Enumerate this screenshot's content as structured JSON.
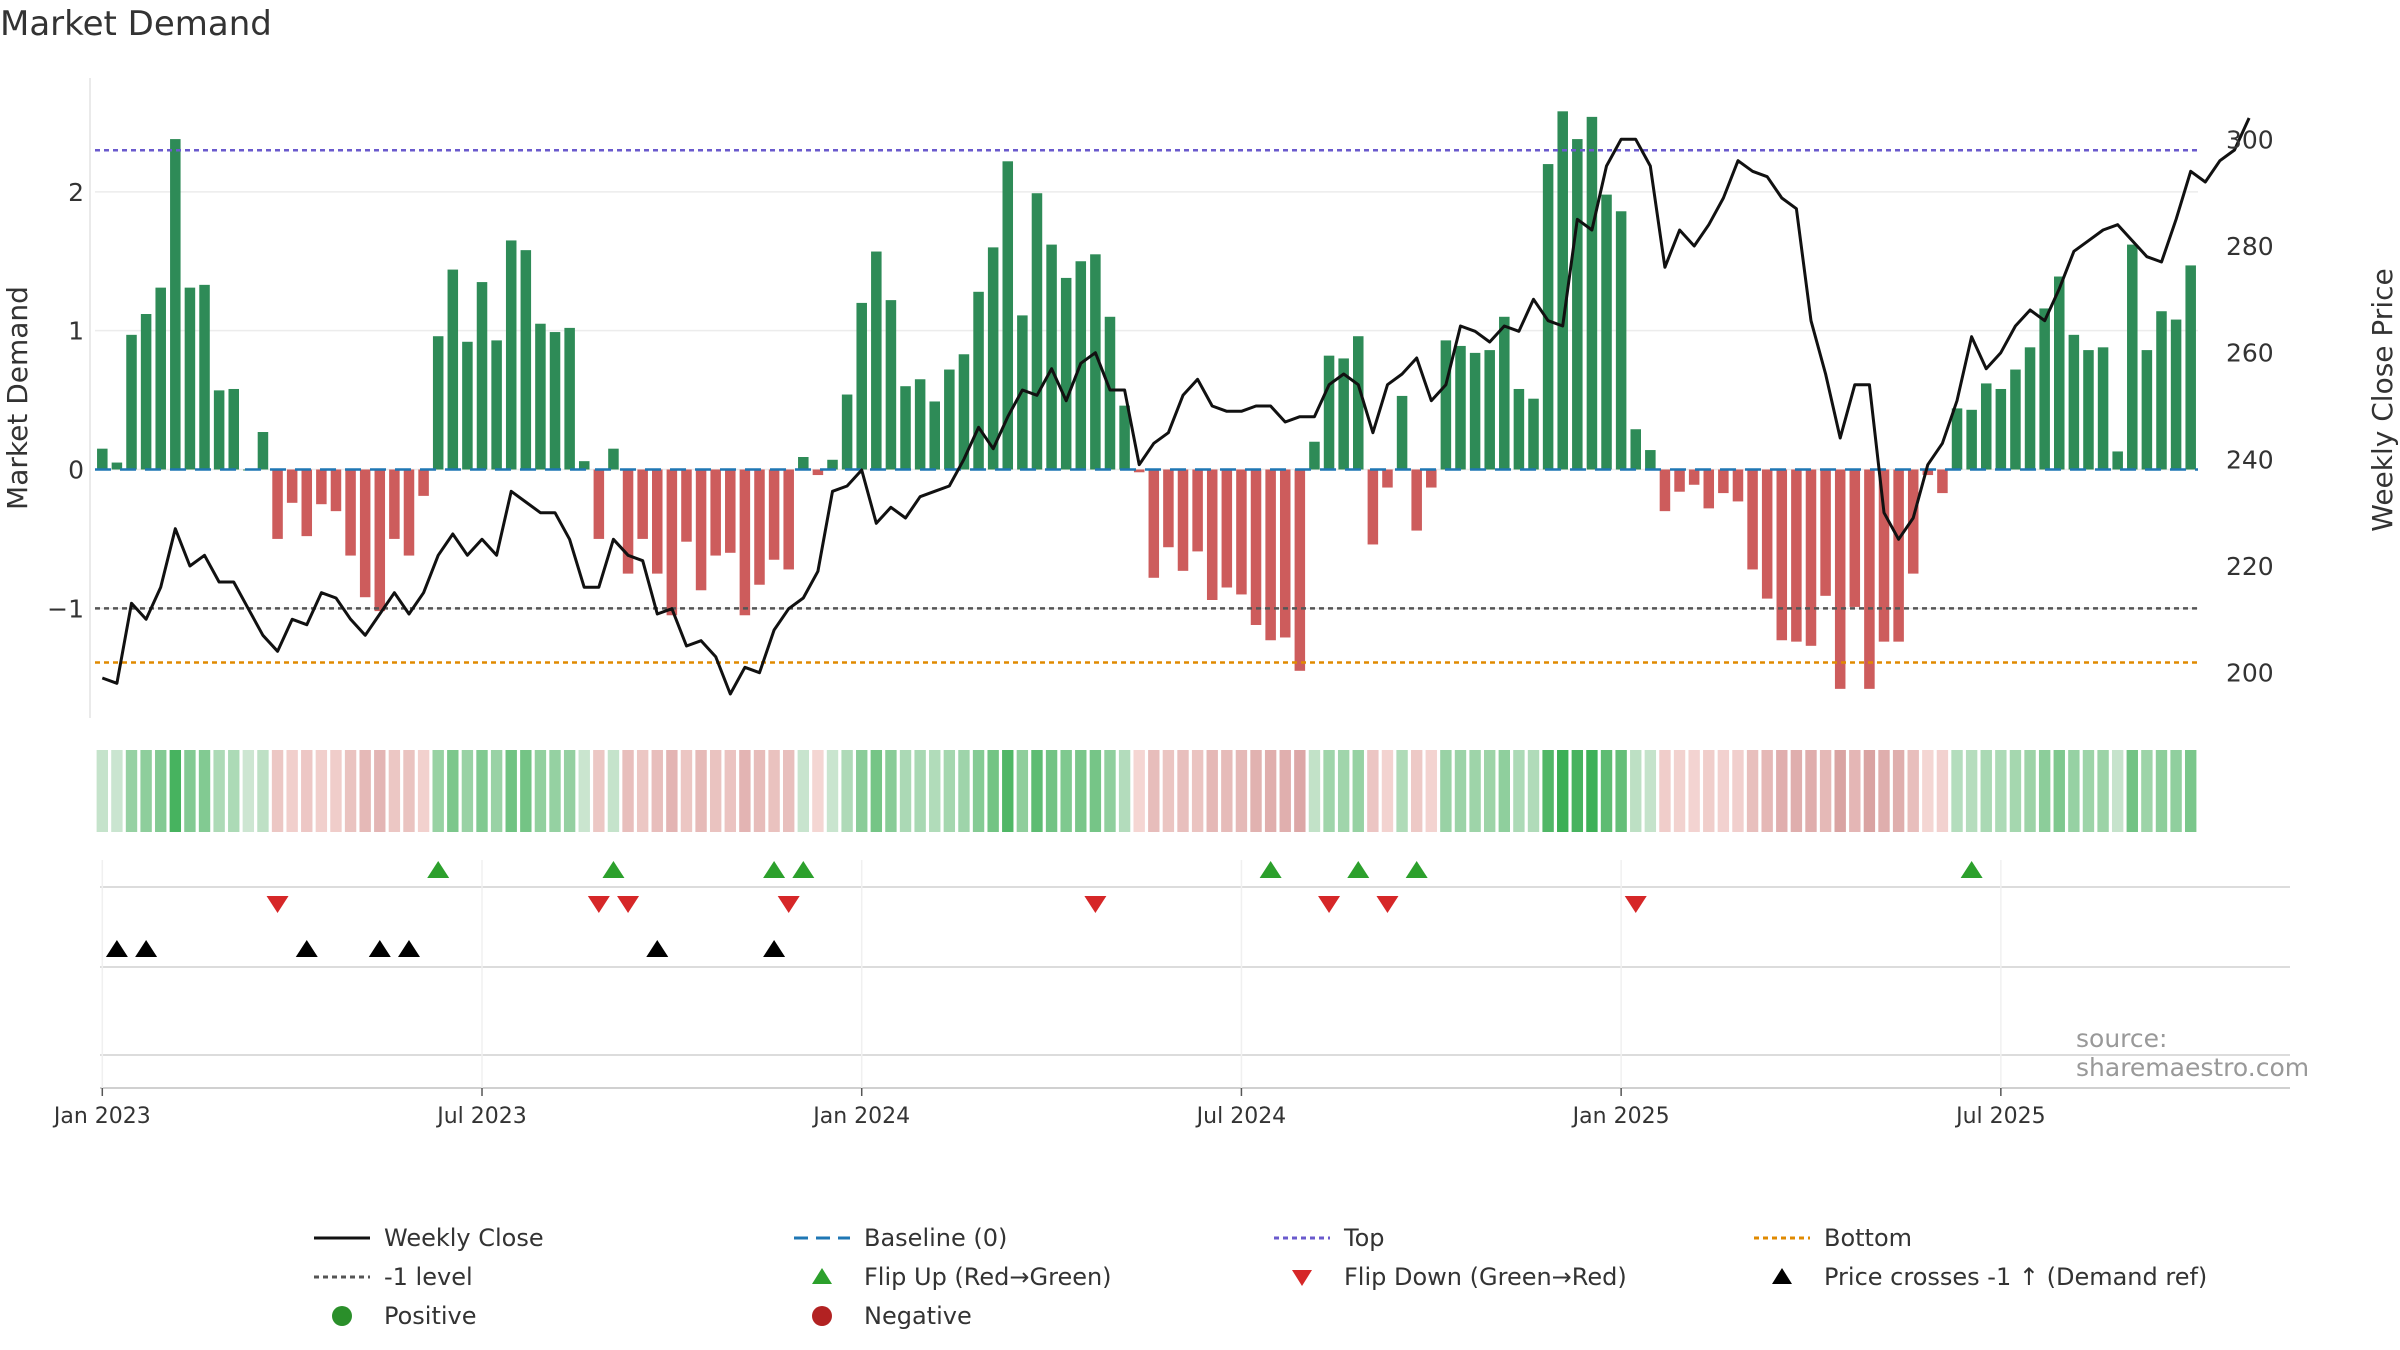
{
  "title": "Market Demand",
  "source": "source: sharemaestro.com",
  "colors": {
    "positive_bar": "#2e8b57",
    "negative_bar": "#cd5c5c",
    "price_line": "#111111",
    "baseline": "#1f77b4",
    "top": "#6a5acd",
    "minus_one": "#555555",
    "bottom": "#e08a00",
    "flip_up": "#2ca02c",
    "flip_down": "#d62728",
    "cross": "#000000"
  },
  "chart_data": {
    "type": "bar",
    "title": "Market Demand",
    "ylabel_left": "Market Demand",
    "ylabel_right": "Weekly Close Price",
    "left_yticks": [
      "2",
      "1",
      "0",
      "−1"
    ],
    "left_ytick_values": [
      2,
      1,
      0,
      -1
    ],
    "right_yticks": [
      "300",
      "280",
      "260",
      "240",
      "220",
      "200"
    ],
    "right_ytick_values": [
      300,
      280,
      260,
      240,
      220,
      200
    ],
    "ylim_left": [
      -1.79,
      2.82
    ],
    "ylim_right": [
      191.5,
      311.5
    ],
    "xticks": [
      "Jan 2023",
      "Jul 2023",
      "Jan 2024",
      "Jul 2024",
      "Jan 2025",
      "Jul 2025"
    ],
    "reference_lines": {
      "baseline": 0,
      "top": 2.3,
      "minus_one": -1,
      "bottom": -1.39
    },
    "demand": [
      0.15,
      0.05,
      0.97,
      1.12,
      1.31,
      2.38,
      1.31,
      1.33,
      0.57,
      0.58,
      0.0,
      0.27,
      -0.5,
      -0.24,
      -0.48,
      -0.25,
      -0.3,
      -0.62,
      -0.92,
      -1.02,
      -0.5,
      -0.62,
      -0.19,
      0.96,
      1.44,
      0.92,
      1.35,
      0.93,
      1.65,
      1.58,
      1.05,
      0.99,
      1.02,
      0.06,
      -0.5,
      0.15,
      -0.75,
      -0.5,
      -0.75,
      -1.05,
      -0.52,
      -0.87,
      -0.62,
      -0.6,
      -1.05,
      -0.83,
      -0.65,
      -0.72,
      0.09,
      -0.04,
      0.07,
      0.54,
      1.2,
      1.57,
      1.22,
      0.6,
      0.65,
      0.49,
      0.72,
      0.83,
      1.28,
      1.6,
      2.22,
      1.11,
      1.99,
      1.62,
      1.38,
      1.5,
      1.55,
      1.1,
      0.46,
      -0.02,
      -0.78,
      -0.56,
      -0.73,
      -0.59,
      -0.94,
      -0.85,
      -0.9,
      -1.12,
      -1.23,
      -1.21,
      -1.45,
      0.2,
      0.82,
      0.8,
      0.96,
      -0.54,
      -0.13,
      0.53,
      -0.44,
      -0.13,
      0.93,
      0.89,
      0.84,
      0.86,
      1.1,
      0.58,
      0.51,
      2.2,
      2.58,
      2.38,
      2.54,
      1.98,
      1.86,
      0.29,
      0.14,
      -0.3,
      -0.16,
      -0.11,
      -0.28,
      -0.17,
      -0.23,
      -0.72,
      -0.93,
      -1.23,
      -1.24,
      -1.27,
      -0.91,
      -1.58,
      -0.99,
      -1.58,
      -1.24,
      -1.24,
      -0.75,
      -0.04,
      -0.17,
      0.44,
      0.43,
      0.62,
      0.58,
      0.72,
      0.88,
      1.16,
      1.39,
      0.97,
      0.86,
      0.88,
      0.13,
      1.62,
      0.86,
      1.14,
      1.08,
      1.47
    ],
    "price": [
      199,
      198,
      213,
      210,
      216,
      227,
      220,
      222,
      217,
      217,
      212,
      207,
      204,
      210,
      209,
      215,
      214,
      210,
      207,
      211,
      215,
      211,
      215,
      222,
      226,
      222,
      225,
      222,
      234,
      232,
      230,
      230,
      225,
      216,
      216,
      225,
      222,
      221,
      211,
      212,
      205,
      206,
      203,
      196,
      201,
      200,
      208,
      212,
      214,
      219,
      234,
      235,
      238,
      228,
      231,
      229,
      233,
      234,
      235,
      240,
      246,
      242,
      248,
      253,
      252,
      257,
      251,
      258,
      260,
      253,
      253,
      239,
      243,
      245,
      252,
      255,
      250,
      249,
      249,
      250,
      250,
      247,
      248,
      248,
      254,
      256,
      254,
      245,
      254,
      256,
      259,
      251,
      254,
      265,
      264,
      262,
      265,
      264,
      270,
      266,
      265,
      285,
      283,
      295,
      300,
      300,
      295,
      276,
      283,
      280,
      284,
      289,
      296,
      294,
      293,
      289,
      287,
      266,
      256,
      244,
      254,
      254,
      230,
      225,
      229,
      239,
      243,
      251,
      263,
      257,
      260,
      265,
      268,
      266,
      272,
      279,
      281,
      283,
      284,
      281,
      278,
      277,
      285,
      294,
      292,
      296,
      298,
      304
    ],
    "flip_up_weeks": [
      23,
      35,
      46,
      48,
      80,
      86,
      90,
      128
    ],
    "flip_down_weeks": [
      12,
      34,
      36,
      47,
      68,
      84,
      88,
      105
    ],
    "price_cross_weeks": [
      1,
      3,
      14,
      19,
      21,
      38,
      46
    ]
  },
  "legend": [
    {
      "key": "line-solid",
      "label": "Weekly Close"
    },
    {
      "key": "line-dash",
      "label": "Baseline (0)"
    },
    {
      "key": "line-dot-blue",
      "label": "Top"
    },
    {
      "key": "line-dot-orange",
      "label": "Bottom"
    },
    {
      "key": "line-dot-gray",
      "label": "-1 level"
    },
    {
      "key": "tri-up-green",
      "label": "Flip Up (Red→Green)"
    },
    {
      "key": "tri-down-red",
      "label": "Flip Down (Green→Red)"
    },
    {
      "key": "tri-up-black",
      "label": "Price crosses -1 ↑ (Demand ref)"
    },
    {
      "key": "dot-green",
      "label": "Positive"
    },
    {
      "key": "dot-red",
      "label": "Negative"
    }
  ]
}
